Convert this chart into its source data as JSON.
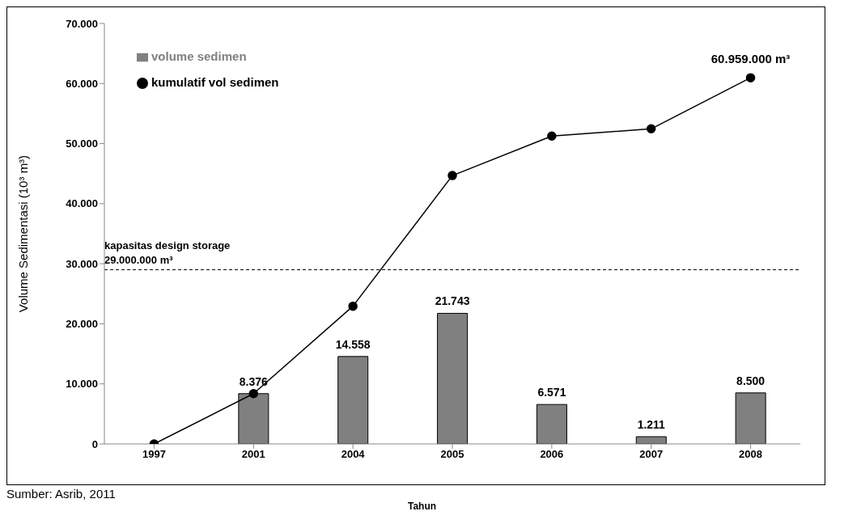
{
  "chart_data": {
    "type": "bar",
    "ylabel": "Volume Sedimentasi (10³ m³)",
    "xlabel": "Tahun",
    "categories": [
      "1997",
      "2001",
      "2004",
      "2005",
      "2006",
      "2007",
      "2008"
    ],
    "series": [
      {
        "name": "volume sedimen",
        "color": "#808080",
        "values": [
          null,
          8376,
          14558,
          21743,
          6571,
          1211,
          8500
        ],
        "value_labels": [
          null,
          "8.376",
          "14.558",
          "21.743",
          "6.571",
          "1.211",
          "8.500"
        ]
      },
      {
        "name": "kumulatif vol sedimen",
        "type": "line",
        "color": "#000000",
        "marker": "circle",
        "line_style": "solid",
        "values": [
          0,
          8376,
          22934,
          44677,
          51248,
          52459,
          60959
        ]
      }
    ],
    "ylim": [
      0,
      70000
    ],
    "yticks": [
      {
        "value": 0,
        "label": "0"
      },
      {
        "value": 10000,
        "label": "10.000"
      },
      {
        "value": 20000,
        "label": "20.000"
      },
      {
        "value": 30000,
        "label": "30.000"
      },
      {
        "value": 40000,
        "label": "40.000"
      },
      {
        "value": 50000,
        "label": "50.000"
      },
      {
        "value": 60000,
        "label": "60.000"
      },
      {
        "value": 70000,
        "label": "70.000"
      }
    ],
    "ref_lines": [
      {
        "axis": "y",
        "value": 29000,
        "label": "kapasitas design storage\n29.000.000 m³",
        "line_style": "dashed",
        "color": "#000000"
      }
    ],
    "annotations": [
      {
        "text": "60.959.000 m³",
        "x": "2008",
        "y": 60959
      },
      "Sumber: Asrib, 2011"
    ],
    "legend": "top left",
    "grid": false
  }
}
